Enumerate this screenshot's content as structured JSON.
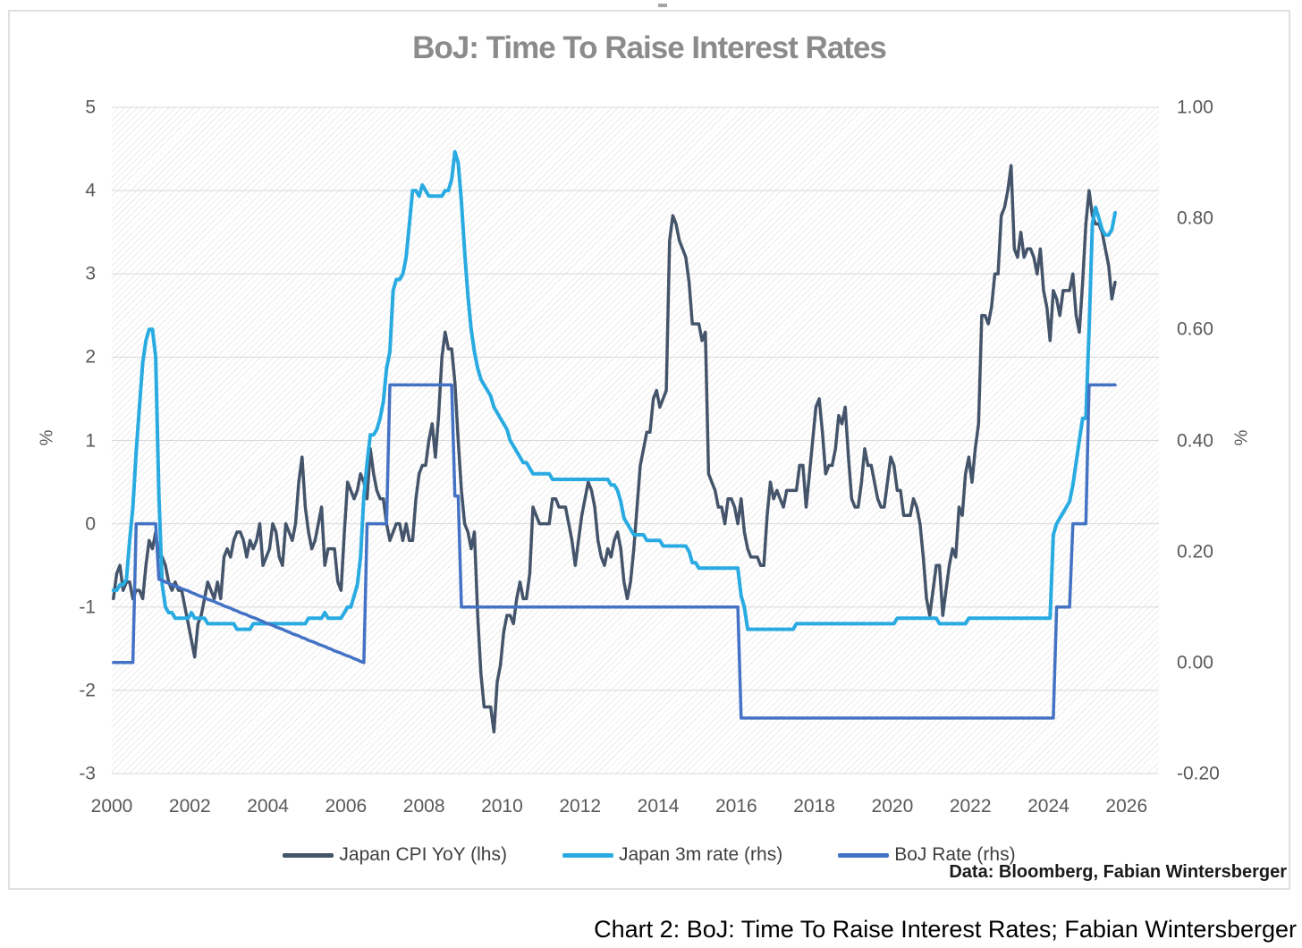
{
  "title": "BoJ: Time To Raise Interest Rates",
  "source_note": "Data: Bloomberg, Fabian Wintersberger",
  "caption": "Chart 2: BoJ: Time To Raise Interest Rates; Fabian Wintersberger",
  "colors": {
    "cpi_line": "#44546A",
    "rate3m_line": "#29ABE2",
    "boj_line": "#4472C4",
    "gridline": "#d9d9d9",
    "title_text": "#8b8b8b",
    "axis_text": "#595959",
    "frame_border": "#e0e0e0"
  },
  "chart_data": {
    "type": "line",
    "title": "BoJ: Time To Raise Interest Rates",
    "grid": "horizontal",
    "plot_background": "diagonal-hatch",
    "legend_position": "bottom",
    "x_axis": {
      "range": [
        2000,
        2026.83
      ],
      "tick_values": [
        2000,
        2002,
        2004,
        2006,
        2008,
        2010,
        2012,
        2014,
        2016,
        2018,
        2020,
        2022,
        2024,
        2026
      ],
      "tick_labels": [
        "2000",
        "2002",
        "2004",
        "2006",
        "2008",
        "2010",
        "2012",
        "2014",
        "2016",
        "2018",
        "2020",
        "2022",
        "2024",
        "2026"
      ]
    },
    "left_axis": {
      "title": "%",
      "range": [
        -3,
        5
      ],
      "tick_values": [
        5,
        4,
        3,
        2,
        1,
        0,
        -1,
        -2,
        -3
      ],
      "tick_labels": [
        "5",
        "4",
        "3",
        "2",
        "1",
        "0",
        "-1",
        "-2",
        "-3"
      ]
    },
    "right_axis": {
      "title": "%",
      "range": [
        -0.2,
        1.0
      ],
      "tick_values": [
        1.0,
        0.8,
        0.6,
        0.4,
        0.2,
        0.0,
        -0.2
      ],
      "tick_labels": [
        "1.00",
        "0.80",
        "0.60",
        "0.40",
        "0.20",
        "0.00",
        "-0.20"
      ]
    },
    "series": [
      {
        "name": "Japan CPI YoY (lhs)",
        "axis": "left",
        "color": "#44546A",
        "width": 3.5,
        "start": "2000-01",
        "freq": "monthly",
        "values": [
          -0.9,
          -0.6,
          -0.5,
          -0.8,
          -0.7,
          -0.7,
          -0.9,
          -0.8,
          -0.8,
          -0.9,
          -0.5,
          -0.2,
          -0.3,
          -0.1,
          -0.4,
          -0.4,
          -0.5,
          -0.7,
          -0.8,
          -0.7,
          -0.8,
          -0.8,
          -1.0,
          -1.2,
          -1.4,
          -1.6,
          -1.2,
          -1.1,
          -0.9,
          -0.7,
          -0.8,
          -0.9,
          -0.7,
          -0.9,
          -0.4,
          -0.3,
          -0.4,
          -0.2,
          -0.1,
          -0.1,
          -0.2,
          -0.4,
          -0.2,
          -0.3,
          -0.2,
          0.0,
          -0.5,
          -0.4,
          -0.3,
          0.0,
          -0.1,
          -0.4,
          -0.5,
          0.0,
          -0.1,
          -0.2,
          0.0,
          0.5,
          0.8,
          0.2,
          -0.1,
          -0.3,
          -0.2,
          0.0,
          0.2,
          -0.5,
          -0.3,
          -0.3,
          -0.3,
          -0.7,
          -0.8,
          -0.1,
          0.5,
          0.4,
          0.3,
          0.4,
          0.6,
          0.5,
          0.3,
          0.9,
          0.6,
          0.4,
          0.3,
          0.3,
          0.0,
          -0.2,
          -0.1,
          0.0,
          0.0,
          -0.2,
          0.0,
          -0.2,
          -0.2,
          0.3,
          0.6,
          0.7,
          0.7,
          1.0,
          1.2,
          0.8,
          1.3,
          2.0,
          2.3,
          2.1,
          2.1,
          1.7,
          1.0,
          0.4,
          0.0,
          -0.1,
          -0.3,
          -0.1,
          -1.1,
          -1.8,
          -2.2,
          -2.2,
          -2.2,
          -2.5,
          -1.9,
          -1.7,
          -1.3,
          -1.1,
          -1.1,
          -1.2,
          -0.9,
          -0.7,
          -0.9,
          -0.9,
          -0.6,
          0.2,
          0.1,
          0.0,
          0.0,
          0.0,
          0.0,
          0.3,
          0.3,
          0.2,
          0.2,
          0.2,
          0.0,
          -0.2,
          -0.5,
          -0.2,
          0.1,
          0.3,
          0.5,
          0.4,
          0.2,
          -0.2,
          -0.4,
          -0.5,
          -0.3,
          -0.4,
          -0.2,
          -0.1,
          -0.3,
          -0.7,
          -0.9,
          -0.7,
          -0.3,
          0.2,
          0.7,
          0.9,
          1.1,
          1.1,
          1.5,
          1.6,
          1.4,
          1.5,
          1.6,
          3.4,
          3.7,
          3.6,
          3.4,
          3.3,
          3.2,
          2.9,
          2.4,
          2.4,
          2.4,
          2.2,
          2.3,
          0.6,
          0.5,
          0.4,
          0.2,
          0.2,
          0.0,
          0.3,
          0.3,
          0.2,
          0.0,
          0.3,
          -0.1,
          -0.3,
          -0.4,
          -0.4,
          -0.4,
          -0.5,
          -0.5,
          0.1,
          0.5,
          0.3,
          0.4,
          0.3,
          0.2,
          0.4,
          0.4,
          0.4,
          0.4,
          0.7,
          0.7,
          0.2,
          0.6,
          1.0,
          1.4,
          1.5,
          1.1,
          0.6,
          0.7,
          0.7,
          0.9,
          1.3,
          1.2,
          1.4,
          0.8,
          0.3,
          0.2,
          0.2,
          0.5,
          0.9,
          0.7,
          0.7,
          0.5,
          0.3,
          0.2,
          0.2,
          0.5,
          0.8,
          0.7,
          0.4,
          0.4,
          0.1,
          0.1,
          0.1,
          0.3,
          0.2,
          0.0,
          -0.4,
          -0.9,
          -1.1,
          -0.8,
          -0.5,
          -0.5,
          -1.1,
          -0.8,
          -0.5,
          -0.3,
          -0.4,
          0.2,
          0.1,
          0.6,
          0.8,
          0.5,
          0.9,
          1.2,
          2.5,
          2.5,
          2.4,
          2.6,
          3.0,
          3.0,
          3.7,
          3.8,
          4.0,
          4.3,
          3.3,
          3.2,
          3.5,
          3.2,
          3.3,
          3.3,
          3.2,
          3.0,
          3.3,
          2.8,
          2.6,
          2.2,
          2.8,
          2.7,
          2.5,
          2.8,
          2.8,
          2.8,
          3.0,
          2.5,
          2.3,
          2.9,
          3.6,
          4.0,
          3.7,
          3.6,
          3.6,
          3.5,
          3.3,
          3.1,
          2.7,
          2.9
        ]
      },
      {
        "name": "Japan 3m rate (rhs)",
        "axis": "right",
        "color": "#29ABE2",
        "width": 4,
        "start": "2000-01",
        "freq": "monthly",
        "values": [
          0.13,
          0.13,
          0.14,
          0.14,
          0.15,
          0.22,
          0.28,
          0.38,
          0.46,
          0.54,
          0.58,
          0.6,
          0.6,
          0.55,
          0.3,
          0.14,
          0.1,
          0.09,
          0.09,
          0.08,
          0.08,
          0.08,
          0.08,
          0.08,
          0.09,
          0.08,
          0.08,
          0.08,
          0.08,
          0.07,
          0.07,
          0.07,
          0.07,
          0.07,
          0.07,
          0.07,
          0.07,
          0.07,
          0.06,
          0.06,
          0.06,
          0.06,
          0.06,
          0.07,
          0.07,
          0.07,
          0.07,
          0.07,
          0.07,
          0.07,
          0.07,
          0.07,
          0.07,
          0.07,
          0.07,
          0.07,
          0.07,
          0.07,
          0.07,
          0.07,
          0.08,
          0.08,
          0.08,
          0.08,
          0.08,
          0.09,
          0.08,
          0.08,
          0.08,
          0.08,
          0.08,
          0.09,
          0.1,
          0.1,
          0.12,
          0.14,
          0.19,
          0.3,
          0.36,
          0.41,
          0.41,
          0.42,
          0.44,
          0.47,
          0.53,
          0.56,
          0.67,
          0.69,
          0.69,
          0.7,
          0.73,
          0.79,
          0.85,
          0.85,
          0.84,
          0.86,
          0.85,
          0.84,
          0.84,
          0.84,
          0.84,
          0.84,
          0.85,
          0.85,
          0.87,
          0.92,
          0.9,
          0.83,
          0.74,
          0.66,
          0.6,
          0.56,
          0.53,
          0.51,
          0.5,
          0.49,
          0.48,
          0.46,
          0.45,
          0.44,
          0.43,
          0.42,
          0.4,
          0.39,
          0.38,
          0.37,
          0.36,
          0.36,
          0.35,
          0.34,
          0.34,
          0.34,
          0.34,
          0.34,
          0.34,
          0.33,
          0.33,
          0.33,
          0.33,
          0.33,
          0.33,
          0.33,
          0.33,
          0.33,
          0.33,
          0.33,
          0.33,
          0.33,
          0.33,
          0.33,
          0.33,
          0.33,
          0.33,
          0.32,
          0.32,
          0.31,
          0.29,
          0.26,
          0.25,
          0.24,
          0.23,
          0.23,
          0.23,
          0.23,
          0.22,
          0.22,
          0.22,
          0.22,
          0.22,
          0.21,
          0.21,
          0.21,
          0.21,
          0.21,
          0.21,
          0.21,
          0.21,
          0.2,
          0.18,
          0.18,
          0.17,
          0.17,
          0.17,
          0.17,
          0.17,
          0.17,
          0.17,
          0.17,
          0.17,
          0.17,
          0.17,
          0.17,
          0.17,
          0.12,
          0.1,
          0.06,
          0.06,
          0.06,
          0.06,
          0.06,
          0.06,
          0.06,
          0.06,
          0.06,
          0.06,
          0.06,
          0.06,
          0.06,
          0.06,
          0.06,
          0.07,
          0.07,
          0.07,
          0.07,
          0.07,
          0.07,
          0.07,
          0.07,
          0.07,
          0.07,
          0.07,
          0.07,
          0.07,
          0.07,
          0.07,
          0.07,
          0.07,
          0.07,
          0.07,
          0.07,
          0.07,
          0.07,
          0.07,
          0.07,
          0.07,
          0.07,
          0.07,
          0.07,
          0.07,
          0.07,
          0.07,
          0.08,
          0.08,
          0.08,
          0.08,
          0.08,
          0.08,
          0.08,
          0.08,
          0.08,
          0.08,
          0.08,
          0.08,
          0.08,
          0.07,
          0.07,
          0.07,
          0.07,
          0.07,
          0.07,
          0.07,
          0.07,
          0.07,
          0.08,
          0.08,
          0.08,
          0.08,
          0.08,
          0.08,
          0.08,
          0.08,
          0.08,
          0.08,
          0.08,
          0.08,
          0.08,
          0.08,
          0.08,
          0.08,
          0.08,
          0.08,
          0.08,
          0.08,
          0.08,
          0.08,
          0.08,
          0.08,
          0.08,
          0.08,
          0.23,
          0.25,
          0.26,
          0.27,
          0.28,
          0.29,
          0.32,
          0.36,
          0.4,
          0.44,
          0.44,
          0.6,
          0.79,
          0.82,
          0.8,
          0.78,
          0.77,
          0.77,
          0.78,
          0.81
        ]
      },
      {
        "name": "BoJ Rate (rhs)",
        "axis": "right",
        "color": "#4472C4",
        "width": 3.5,
        "start": "2000-01",
        "freq": "monthly",
        "values": [
          0.0,
          0.0,
          0.0,
          0.0,
          0.0,
          0.0,
          0.0,
          0.25,
          0.25,
          0.25,
          0.25,
          0.25,
          0.25,
          0.25,
          0.15,
          0.148,
          0.145,
          0.143,
          0.14,
          0.138,
          0.136,
          0.133,
          0.131,
          0.129,
          0.126,
          0.124,
          0.121,
          0.119,
          0.117,
          0.114,
          0.112,
          0.11,
          0.107,
          0.105,
          0.102,
          0.1,
          0.098,
          0.095,
          0.093,
          0.09,
          0.088,
          0.086,
          0.083,
          0.081,
          0.079,
          0.076,
          0.074,
          0.071,
          0.069,
          0.067,
          0.064,
          0.062,
          0.06,
          0.057,
          0.055,
          0.052,
          0.05,
          0.048,
          0.045,
          0.043,
          0.04,
          0.038,
          0.036,
          0.033,
          0.031,
          0.029,
          0.026,
          0.024,
          0.021,
          0.019,
          0.017,
          0.014,
          0.012,
          0.01,
          0.007,
          0.005,
          0.002,
          0.0,
          0.25,
          0.25,
          0.25,
          0.25,
          0.25,
          0.25,
          0.25,
          0.5,
          0.5,
          0.5,
          0.5,
          0.5,
          0.5,
          0.5,
          0.5,
          0.5,
          0.5,
          0.5,
          0.5,
          0.5,
          0.5,
          0.5,
          0.5,
          0.5,
          0.5,
          0.5,
          0.5,
          0.3,
          0.3,
          0.1,
          0.1,
          0.1,
          0.1,
          0.1,
          0.1,
          0.1,
          0.1,
          0.1,
          0.1,
          0.1,
          0.1,
          0.1,
          0.1,
          0.1,
          0.1,
          0.1,
          0.1,
          0.1,
          0.1,
          0.1,
          0.1,
          0.1,
          0.1,
          0.1,
          0.1,
          0.1,
          0.1,
          0.1,
          0.1,
          0.1,
          0.1,
          0.1,
          0.1,
          0.1,
          0.1,
          0.1,
          0.1,
          0.1,
          0.1,
          0.1,
          0.1,
          0.1,
          0.1,
          0.1,
          0.1,
          0.1,
          0.1,
          0.1,
          0.1,
          0.1,
          0.1,
          0.1,
          0.1,
          0.1,
          0.1,
          0.1,
          0.1,
          0.1,
          0.1,
          0.1,
          0.1,
          0.1,
          0.1,
          0.1,
          0.1,
          0.1,
          0.1,
          0.1,
          0.1,
          0.1,
          0.1,
          0.1,
          0.1,
          0.1,
          0.1,
          0.1,
          0.1,
          0.1,
          0.1,
          0.1,
          0.1,
          0.1,
          0.1,
          0.1,
          0.1,
          -0.1,
          -0.1,
          -0.1,
          -0.1,
          -0.1,
          -0.1,
          -0.1,
          -0.1,
          -0.1,
          -0.1,
          -0.1,
          -0.1,
          -0.1,
          -0.1,
          -0.1,
          -0.1,
          -0.1,
          -0.1,
          -0.1,
          -0.1,
          -0.1,
          -0.1,
          -0.1,
          -0.1,
          -0.1,
          -0.1,
          -0.1,
          -0.1,
          -0.1,
          -0.1,
          -0.1,
          -0.1,
          -0.1,
          -0.1,
          -0.1,
          -0.1,
          -0.1,
          -0.1,
          -0.1,
          -0.1,
          -0.1,
          -0.1,
          -0.1,
          -0.1,
          -0.1,
          -0.1,
          -0.1,
          -0.1,
          -0.1,
          -0.1,
          -0.1,
          -0.1,
          -0.1,
          -0.1,
          -0.1,
          -0.1,
          -0.1,
          -0.1,
          -0.1,
          -0.1,
          -0.1,
          -0.1,
          -0.1,
          -0.1,
          -0.1,
          -0.1,
          -0.1,
          -0.1,
          -0.1,
          -0.1,
          -0.1,
          -0.1,
          -0.1,
          -0.1,
          -0.1,
          -0.1,
          -0.1,
          -0.1,
          -0.1,
          -0.1,
          -0.1,
          -0.1,
          -0.1,
          -0.1,
          -0.1,
          -0.1,
          -0.1,
          -0.1,
          -0.1,
          -0.1,
          -0.1,
          -0.1,
          -0.1,
          -0.1,
          -0.1,
          -0.1,
          -0.1,
          0.1,
          0.1,
          0.1,
          0.1,
          0.1,
          0.25,
          0.25,
          0.25,
          0.25,
          0.25,
          0.5,
          0.5,
          0.5,
          0.5,
          0.5,
          0.5,
          0.5,
          0.5,
          0.5
        ]
      }
    ]
  }
}
